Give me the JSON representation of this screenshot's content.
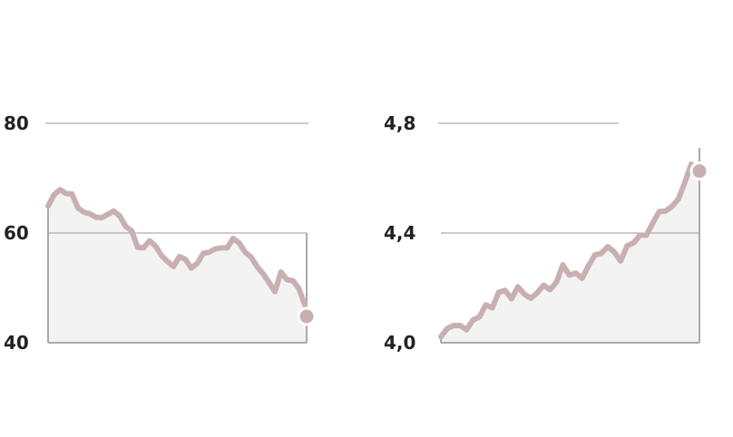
{
  "colors": {
    "line": "#c8b0b2",
    "fill": "#f3f3f3",
    "grid": "#999999",
    "axis": "#aaaaaa",
    "label": "#222222"
  },
  "chart_data": [
    {
      "type": "area",
      "ylim": [
        40,
        80
      ],
      "yticks": [
        {
          "value": 80,
          "label": "80"
        },
        {
          "value": 60,
          "label": "60"
        },
        {
          "value": 40,
          "label": "40"
        }
      ],
      "grid": true,
      "values": [
        64.9,
        67.0,
        67.9,
        67.2,
        67.1,
        64.6,
        63.8,
        63.5,
        62.9,
        62.8,
        63.4,
        64.0,
        63.1,
        61.2,
        60.4,
        57.4,
        57.3,
        58.6,
        57.6,
        55.9,
        54.8,
        53.9,
        55.7,
        55.2,
        53.6,
        54.5,
        56.3,
        56.5,
        57.1,
        57.3,
        57.3,
        59.0,
        58.2,
        56.5,
        55.6,
        53.9,
        52.6,
        51.0,
        49.3,
        52.9,
        51.5,
        51.3,
        49.9,
        46.9
      ],
      "last_point": 44.8
    },
    {
      "type": "area",
      "ylim": [
        4.0,
        4.8
      ],
      "yticks": [
        {
          "value": 4.8,
          "label": "4,8"
        },
        {
          "value": 4.4,
          "label": "4,4"
        },
        {
          "value": 4.0,
          "label": "4,0"
        }
      ],
      "grid": true,
      "values": [
        4.022,
        4.052,
        4.063,
        4.063,
        4.047,
        4.083,
        4.094,
        4.138,
        4.127,
        4.184,
        4.191,
        4.16,
        4.204,
        4.177,
        4.162,
        4.182,
        4.21,
        4.193,
        4.221,
        4.284,
        4.246,
        4.254,
        4.235,
        4.281,
        4.32,
        4.326,
        4.35,
        4.331,
        4.298,
        4.353,
        4.364,
        4.392,
        4.392,
        4.436,
        4.478,
        4.48,
        4.497,
        4.524,
        4.585,
        4.651
      ],
      "last_point": 4.626
    }
  ]
}
